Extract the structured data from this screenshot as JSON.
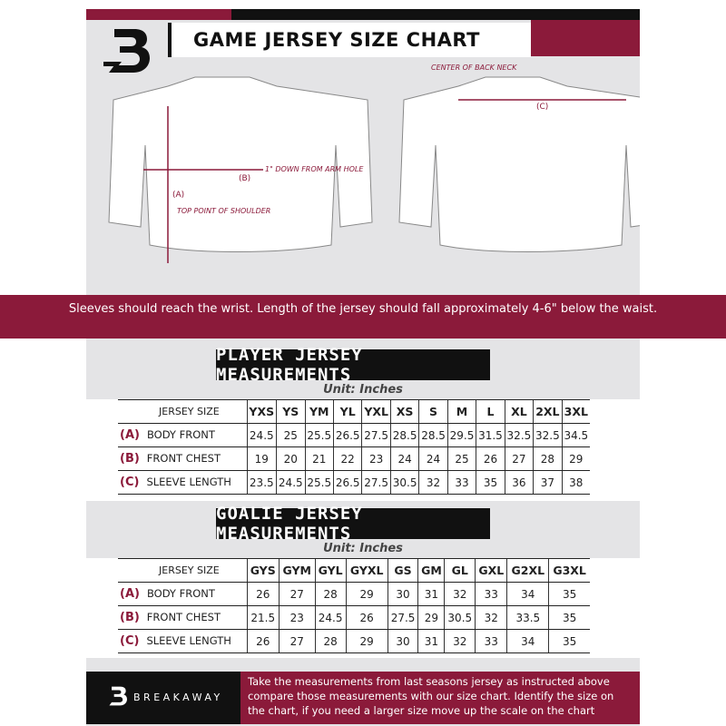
{
  "header": {
    "title": "GAME JERSEY SIZE CHART",
    "logo": "B"
  },
  "diagram": {
    "center_back_neck": "CENTER OF BACK NECK",
    "label_a": "(A)",
    "label_b": "(B)",
    "label_c": "(C)",
    "top_point": "TOP POINT OF SHOULDER",
    "one_inch_down": "1\" DOWN FROM ARM HOLE"
  },
  "note": "Sleeves should reach the wrist. Length of the jersey should fall approximately 4-6\" below the waist.",
  "player": {
    "title": "PLAYER JERSEY MEASUREMENTS",
    "unit": "Unit: Inches",
    "size_header": "JERSEY SIZE",
    "sizes": [
      "YXS",
      "YS",
      "YM",
      "YL",
      "YXL",
      "XS",
      "S",
      "M",
      "L",
      "XL",
      "2XL",
      "3XL"
    ],
    "rows": [
      {
        "code": "(A)",
        "label": "BODY FRONT",
        "values": [
          "24.5",
          "25",
          "25.5",
          "26.5",
          "27.5",
          "28.5",
          "28.5",
          "29.5",
          "31.5",
          "32.5",
          "32.5",
          "34.5"
        ]
      },
      {
        "code": "(B)",
        "label": "FRONT CHEST",
        "values": [
          "19",
          "20",
          "21",
          "22",
          "23",
          "24",
          "24",
          "25",
          "26",
          "27",
          "28",
          "29"
        ]
      },
      {
        "code": "(C)",
        "label": "SLEEVE LENGTH",
        "values": [
          "23.5",
          "24.5",
          "25.5",
          "26.5",
          "27.5",
          "30.5",
          "32",
          "33",
          "35",
          "36",
          "37",
          "38"
        ]
      }
    ]
  },
  "goalie": {
    "title": "GOALIE JERSEY MEASUREMENTS",
    "unit": "Unit: Inches",
    "size_header": "JERSEY SIZE",
    "sizes": [
      "GYS",
      "GYM",
      "GYL",
      "GYXL",
      "GS",
      "GM",
      "GL",
      "GXL",
      "G2XL",
      "G3XL"
    ],
    "rows": [
      {
        "code": "(A)",
        "label": "BODY FRONT",
        "values": [
          "26",
          "27",
          "28",
          "29",
          "30",
          "31",
          "32",
          "33",
          "34",
          "35"
        ]
      },
      {
        "code": "(B)",
        "label": "FRONT CHEST",
        "values": [
          "21.5",
          "23",
          "24.5",
          "26",
          "27.5",
          "29",
          "30.5",
          "32",
          "33.5",
          "35"
        ]
      },
      {
        "code": "(C)",
        "label": "SLEEVE LENGTH",
        "values": [
          "26",
          "27",
          "28",
          "29",
          "30",
          "31",
          "32",
          "33",
          "34",
          "35"
        ]
      }
    ]
  },
  "footer": {
    "brand": "BREAKAWAY",
    "text": "Take the measurements from last seasons jersey as instructed above compare those measurements  with our size chart. Identify the size on the chart, if you need a larger size move up the scale on the chart"
  },
  "colors": {
    "accent": "#8b1a3a",
    "dark": "#111111",
    "background": "#e4e4e6"
  }
}
